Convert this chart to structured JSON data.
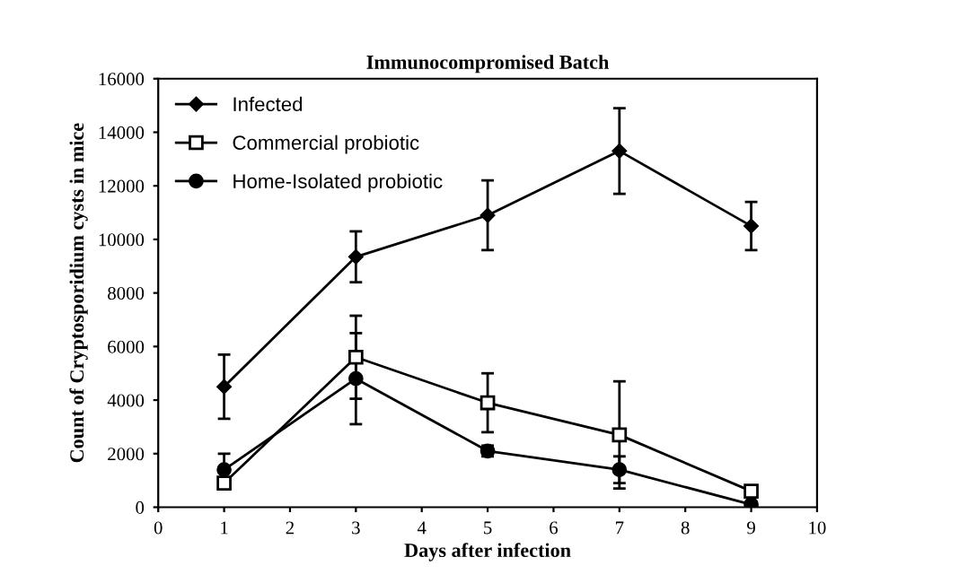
{
  "chart_data": {
    "type": "line",
    "title": "Immunocompromised Batch",
    "xlabel": "Days after infection",
    "ylabel": "Count of Cryptosporidium cysts in mice",
    "x": [
      1,
      3,
      5,
      7,
      9
    ],
    "series": [
      {
        "name": "Infected",
        "color": "#000000",
        "marker": "diamond",
        "values": [
          4500,
          9350,
          10900,
          13300,
          10500
        ],
        "errors": [
          1200,
          950,
          1300,
          1600,
          900
        ]
      },
      {
        "name": "Commercial probiotic",
        "color": "#000000",
        "marker": "square",
        "values": [
          900,
          5600,
          3900,
          2700,
          600
        ],
        "errors": [
          null,
          1550,
          1100,
          2000,
          100
        ]
      },
      {
        "name": "Home-Isolated probiotic",
        "color": "#000000",
        "marker": "circle",
        "values": [
          1400,
          4800,
          2100,
          1400,
          100
        ],
        "errors": [
          600,
          1700,
          200,
          500,
          null
        ]
      }
    ],
    "xlim": [
      0,
      10
    ],
    "xticks": [
      0,
      1,
      2,
      3,
      4,
      5,
      6,
      7,
      8,
      9,
      10
    ],
    "ylim": [
      0,
      16000
    ],
    "yticks": [
      0,
      2000,
      4000,
      6000,
      8000,
      10000,
      12000,
      14000,
      16000
    ],
    "grid": false,
    "legend": "top left"
  }
}
